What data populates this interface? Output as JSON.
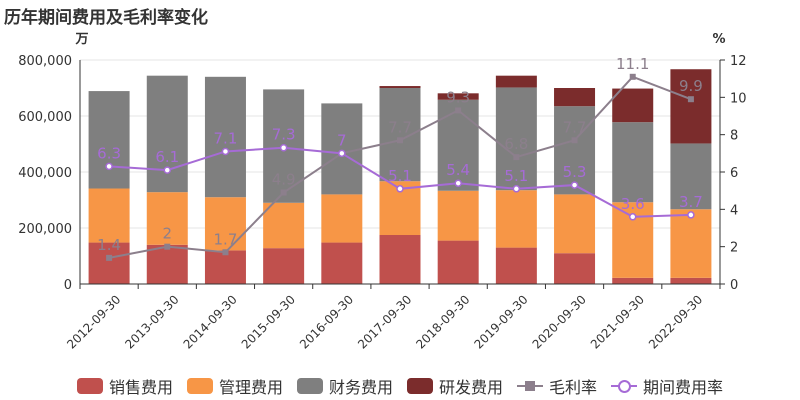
{
  "title": "历年期间费用及毛利率变化",
  "chart_data": {
    "type": "bar",
    "stacked": true,
    "categories": [
      "2012-09-30",
      "2013-09-30",
      "2014-09-30",
      "2015-09-30",
      "2016-09-30",
      "2017-09-30",
      "2018-09-30",
      "2019-09-30",
      "2020-09-30",
      "2021-09-30",
      "2022-09-30"
    ],
    "y_left": {
      "unit": "万",
      "min": 0,
      "max": 800000,
      "ticks": [
        "0",
        "200,000",
        "400,000",
        "600,000",
        "800,000"
      ]
    },
    "y_right": {
      "unit": "%",
      "min": 0,
      "max": 12,
      "ticks": [
        "0",
        "2",
        "4",
        "6",
        "8",
        "10",
        "12"
      ]
    },
    "grid": true,
    "legend_position": "bottom",
    "series": [
      {
        "name": "销售费用",
        "kind": "bar",
        "color": "#c0504d",
        "values": [
          148000,
          140000,
          120000,
          128000,
          148000,
          175000,
          155000,
          130000,
          110000,
          22000,
          22000
        ]
      },
      {
        "name": "管理费用",
        "kind": "bar",
        "color": "#f79646",
        "values": [
          193000,
          188000,
          190000,
          162000,
          172000,
          192000,
          178000,
          205000,
          210000,
          270000,
          245000
        ]
      },
      {
        "name": "财务费用",
        "kind": "bar",
        "color": "#7f7f7f",
        "values": [
          348000,
          416000,
          430000,
          405000,
          325000,
          333000,
          325000,
          367000,
          315000,
          286000,
          235000
        ]
      },
      {
        "name": "研发费用",
        "kind": "bar",
        "color": "#7b2c2c",
        "values": [
          0,
          0,
          0,
          0,
          0,
          7000,
          23000,
          42000,
          65000,
          120000,
          265000
        ]
      },
      {
        "name": "毛利率",
        "kind": "line",
        "axis": "right",
        "marker": "square",
        "color": "#8c7f8c",
        "values": [
          1.4,
          2,
          1.7,
          4.9,
          7,
          7.7,
          9.3,
          6.8,
          7.7,
          11.1,
          9.9
        ],
        "labels": [
          "1.4",
          "2",
          "1.7",
          "4.9",
          "7",
          "7.7",
          "9.3",
          "6.8",
          "7.7",
          "11.1",
          "9.9"
        ]
      },
      {
        "name": "期间费用率",
        "kind": "line",
        "axis": "right",
        "marker": "circle",
        "color": "#a66bd6",
        "values": [
          6.3,
          6.1,
          7.1,
          7.3,
          7,
          5.1,
          5.4,
          5.1,
          5.3,
          3.6,
          3.7
        ],
        "labels": [
          "6.3",
          "6.1",
          "7.1",
          "7.3",
          "7",
          "5.1",
          "5.4",
          "5.1",
          "5.3",
          "3.6",
          "3.7"
        ]
      }
    ]
  }
}
